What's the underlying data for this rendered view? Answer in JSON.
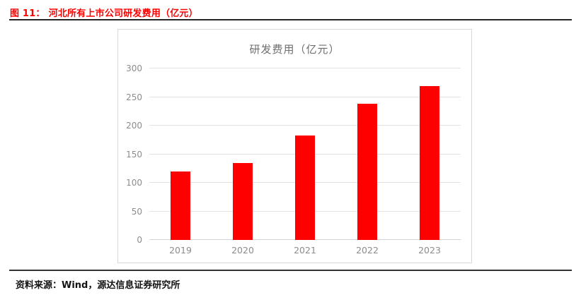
{
  "header": {
    "figure_label": "图 11：",
    "figure_title": "河北所有上市公司研发费用（亿元）"
  },
  "chart_data": {
    "type": "bar",
    "title": "研发费用（亿元）",
    "categories": [
      "2019",
      "2020",
      "2021",
      "2022",
      "2023"
    ],
    "values": [
      120,
      134,
      183,
      238,
      269
    ],
    "xlabel": "",
    "ylabel": "",
    "ylim": [
      0,
      300
    ],
    "yticks": [
      0,
      50,
      100,
      150,
      200,
      250,
      300
    ],
    "grid": "horizontal",
    "legend": "none",
    "bar_color": "#ff0000"
  },
  "footer": {
    "source": "资料来源：Wind，源达信息证券研究所"
  },
  "colors": {
    "accent_red": "#ff0000",
    "axis_text": "#8c8c8c",
    "gridline": "#e2e2e2",
    "chart_border": "#d9d9d9",
    "rule": "#262626",
    "chart_title_text": "#6e6e6e",
    "footer_text": "#141414"
  }
}
